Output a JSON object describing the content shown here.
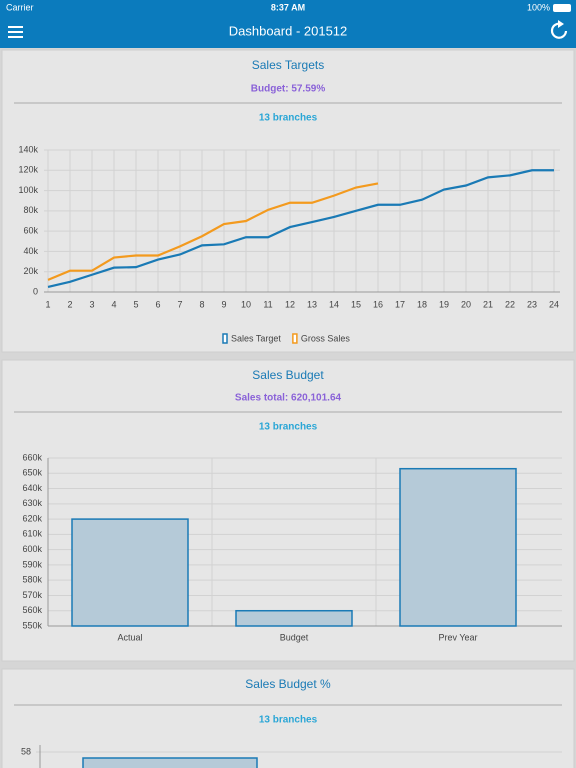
{
  "status_bar": {
    "carrier": "Carrier",
    "time": "8:37 AM",
    "battery": "100%"
  },
  "header": {
    "title": "Dashboard - 201512"
  },
  "cards": [
    {
      "title": "Sales Targets",
      "subtitle": "Budget: 57.59%",
      "branches": "13 branches",
      "chart_data": {
        "type": "line",
        "x": [
          1,
          2,
          3,
          4,
          5,
          6,
          7,
          8,
          9,
          10,
          11,
          12,
          13,
          14,
          15,
          16,
          17,
          18,
          19,
          20,
          21,
          22,
          23,
          24
        ],
        "xlim": [
          1,
          24
        ],
        "ylim": [
          0,
          140000
        ],
        "yticks": [
          0,
          {
            "value": 20000,
            "label": "20k"
          },
          {
            "value": 40000,
            "label": "40k"
          },
          {
            "value": 60000,
            "label": "60k"
          },
          {
            "value": 80000,
            "label": "80k"
          },
          {
            "value": 100000,
            "label": "100k"
          },
          {
            "value": 120000,
            "label": "120k"
          },
          {
            "value": 140000,
            "label": "140k"
          }
        ],
        "grid": true,
        "legend": "bottom",
        "series": [
          {
            "name": "Sales Target",
            "color": "#1a7ab5",
            "values": [
              5000,
              10000,
              17000,
              24000,
              24500,
              32000,
              37000,
              46000,
              47000,
              54000,
              54000,
              64000,
              69000,
              74000,
              80000,
              86000,
              86000,
              91000,
              101000,
              105000,
              113000,
              115000,
              120000,
              120000
            ]
          },
          {
            "name": "Gross Sales",
            "color": "#f39a1e",
            "values": [
              12000,
              21000,
              21000,
              34000,
              36000,
              36000,
              45000,
              55000,
              67000,
              70000,
              81000,
              88000,
              88000,
              95000,
              103000,
              107000,
              null,
              null,
              null,
              null,
              null,
              null,
              null,
              null
            ]
          }
        ]
      }
    },
    {
      "title": "Sales Budget",
      "subtitle": "Sales total: 620,101.64",
      "branches": "13 branches",
      "chart_data": {
        "type": "bar",
        "categories": [
          "Actual",
          "Budget",
          "Prev Year"
        ],
        "values": [
          620000,
          560000,
          653000
        ],
        "color": "#b5cad8",
        "ylim": [
          550000,
          660000
        ],
        "yticks": [
          {
            "value": 550000,
            "label": "550k"
          },
          {
            "value": 560000,
            "label": "560k"
          },
          {
            "value": 570000,
            "label": "570k"
          },
          {
            "value": 580000,
            "label": "580k"
          },
          {
            "value": 590000,
            "label": "590k"
          },
          {
            "value": 600000,
            "label": "600k"
          },
          {
            "value": 610000,
            "label": "610k"
          },
          {
            "value": 620000,
            "label": "620k"
          },
          {
            "value": 630000,
            "label": "630k"
          },
          {
            "value": 640000,
            "label": "640k"
          },
          {
            "value": 650000,
            "label": "650k"
          },
          {
            "value": 660000,
            "label": "660k"
          }
        ],
        "grid": true
      }
    },
    {
      "title": "Sales Budget %",
      "branches": "13 branches",
      "chart_data": {
        "type": "bar",
        "yticks": [
          58
        ]
      }
    }
  ]
}
